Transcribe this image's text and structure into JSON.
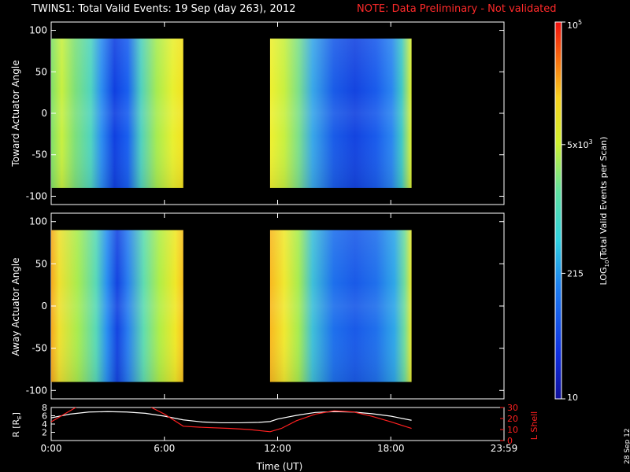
{
  "title": {
    "main": "TWINS1: Total Valid Events: 19 Sep (day 263), 2012",
    "note": "NOTE: Data Preliminary - Not validated"
  },
  "date_stamp": "28 Sep 12",
  "colors": {
    "background": "#000000",
    "note": "#ff2a2a",
    "r_line": "#ffffff",
    "lshell_line": "#ff2020"
  },
  "chart_data": [
    {
      "type": "heatmap",
      "ylabel": "Toward Actuator Angle",
      "ylim": [
        -110,
        110
      ],
      "yticks": [
        100,
        50,
        0,
        -50,
        -100
      ],
      "xlim": [
        0,
        24
      ],
      "segments": [
        {
          "start": 0.0,
          "end": 7.0
        },
        {
          "start": 11.6,
          "end": 19.1
        }
      ],
      "angle_range": [
        -90,
        90
      ]
    },
    {
      "type": "heatmap",
      "ylabel": "Away Actuator Angle",
      "ylim": [
        -110,
        110
      ],
      "yticks": [
        100,
        50,
        0,
        -50,
        -100
      ],
      "xlim": [
        0,
        24
      ],
      "segments": [
        {
          "start": 0.0,
          "end": 7.0
        },
        {
          "start": 11.6,
          "end": 19.1
        }
      ],
      "angle_range": [
        -90,
        90
      ]
    },
    {
      "type": "line",
      "xlabel": "Time (UT)",
      "xlim": [
        0,
        24
      ],
      "xticks": [
        "0:00",
        "6:00",
        "12:00",
        "18:00",
        "23:59"
      ],
      "xtick_values": [
        0,
        6,
        12,
        18,
        24
      ],
      "left_axis": {
        "label": "R [R",
        "label_sub": "E",
        "label_end": "]",
        "ticks": [
          2,
          4,
          6,
          8
        ],
        "range": [
          0,
          8
        ]
      },
      "right_axis": {
        "label": "L Shell",
        "ticks": [
          0,
          10,
          20,
          30
        ],
        "range": [
          0,
          30
        ]
      },
      "series": [
        {
          "axis": "left",
          "color": "#ffffff",
          "x": [
            0,
            1,
            2,
            3,
            4,
            5,
            6,
            7,
            8,
            9,
            10,
            11,
            11.6,
            12,
            13,
            14,
            15,
            16,
            17,
            18,
            19.1
          ],
          "y": [
            5.5,
            6.4,
            6.9,
            7.0,
            6.9,
            6.6,
            5.9,
            5.0,
            4.5,
            4.3,
            4.3,
            4.4,
            4.6,
            5.2,
            6.1,
            6.8,
            7.0,
            6.9,
            6.5,
            5.9,
            4.9
          ]
        },
        {
          "axis": "right",
          "color": "#ff2020",
          "x": [
            0,
            0.8,
            1.4,
            5.2,
            6.0,
            7.0,
            8.0,
            9.5,
            10.5,
            11.6,
            12.2,
            13,
            14,
            15,
            16,
            17,
            18,
            19.1
          ],
          "y": [
            17,
            25,
            31,
            31,
            24,
            13,
            12,
            11,
            10,
            8,
            11,
            18,
            24,
            27,
            26,
            22,
            17,
            11
          ]
        }
      ]
    },
    {
      "type": "colorbar",
      "label": "LOG",
      "label_sub": "10",
      "label_rest": "(Total Valid Events per Scan)",
      "ticks": [
        {
          "value": 100000,
          "base": "10",
          "exp": "5"
        },
        {
          "value": 5000,
          "base": "5x10",
          "exp": "3"
        },
        {
          "value": 215,
          "base": "215",
          "exp": ""
        },
        {
          "value": 10,
          "base": "10",
          "exp": ""
        }
      ],
      "range": [
        10,
        100000
      ],
      "scale": "log"
    }
  ]
}
